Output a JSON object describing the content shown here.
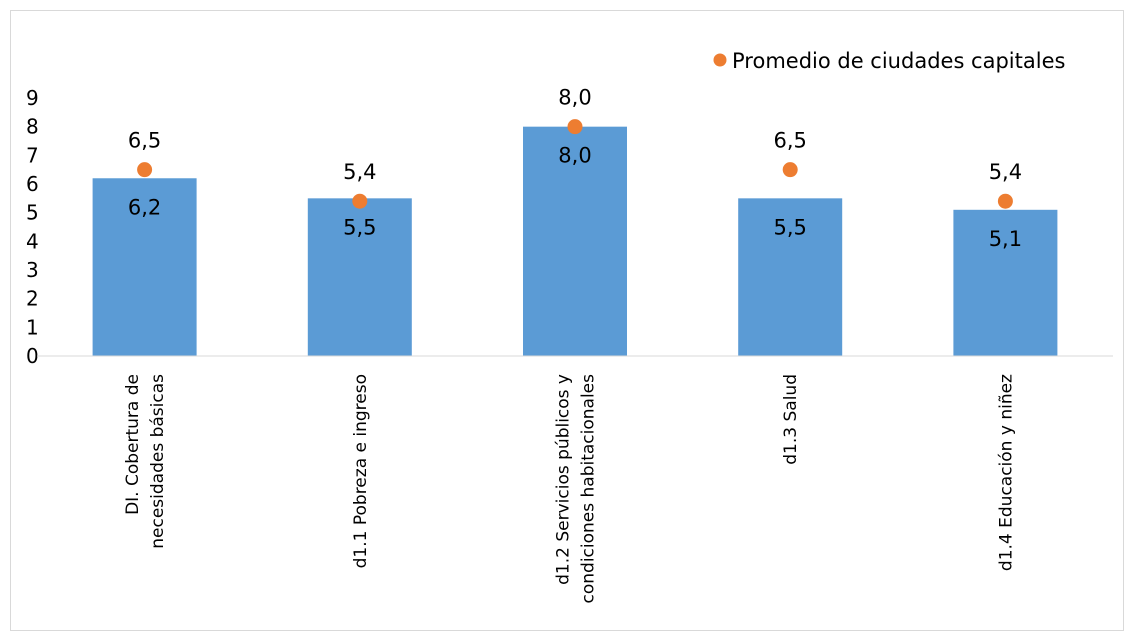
{
  "chart_data": {
    "type": "bar",
    "title": "",
    "xlabel": "",
    "ylabel": "",
    "ylim": [
      0,
      9
    ],
    "yticks": [
      "0",
      "1",
      "2",
      "3",
      "4",
      "5",
      "6",
      "7",
      "8",
      "9"
    ],
    "grid": false,
    "legend_position": "top-right",
    "categories": [
      [
        "DI. Cobertura de",
        "necesidades básicas"
      ],
      [
        "d1.1 Pobreza e ingreso"
      ],
      [
        "d1.2 Servicios públicos y",
        "condiciones habitacionales"
      ],
      [
        "d1.3 Salud"
      ],
      [
        "d1.4 Educación y niñez"
      ]
    ],
    "series": [
      {
        "kind": "bar",
        "color": "#5b9bd5",
        "values": [
          6.2,
          5.5,
          8.0,
          5.5,
          5.1
        ],
        "labels": [
          "6,2",
          "5,5",
          "8,0",
          "5,5",
          "5,1"
        ]
      },
      {
        "kind": "point",
        "name": "Promedio de ciudades capitales",
        "color": "#ed7d31",
        "values": [
          6.5,
          5.4,
          8.0,
          6.5,
          5.4
        ],
        "labels": [
          "6,5",
          "5,4",
          "8,0",
          "6,5",
          "5,4"
        ]
      }
    ]
  }
}
